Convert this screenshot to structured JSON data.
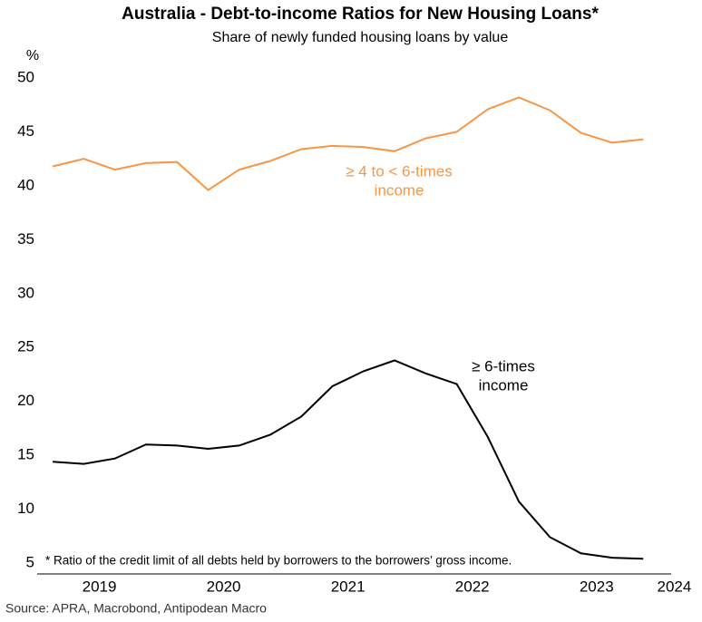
{
  "chart_data": {
    "type": "line",
    "title": "Australia - Debt-to-income Ratios for New Housing Loans*",
    "subtitle": "Share of newly funded housing loans by value",
    "y_unit": "%",
    "footnote": "* Ratio of the credit limit of all debts held by borrowers to the borrowers’ gross income.",
    "source": "Source: APRA, Macrobond, Antipodean Macro",
    "x": [
      2019.125,
      2019.375,
      2019.625,
      2019.875,
      2020.125,
      2020.375,
      2020.625,
      2020.875,
      2021.125,
      2021.375,
      2021.625,
      2021.875,
      2022.125,
      2022.375,
      2022.625,
      2022.875,
      2023.125,
      2023.375,
      2023.625,
      2023.875
    ],
    "xlim": [
      2019,
      2024.1
    ],
    "xticks": [
      {
        "value": 2019.5,
        "label": "2019"
      },
      {
        "value": 2020.5,
        "label": "2020"
      },
      {
        "value": 2021.5,
        "label": "2021"
      },
      {
        "value": 2022.5,
        "label": "2022"
      },
      {
        "value": 2023.5,
        "label": "2023"
      },
      {
        "value": 2024.125,
        "label": "2024"
      }
    ],
    "ylim": [
      5,
      50
    ],
    "yticks": [
      5,
      10,
      15,
      20,
      25,
      30,
      35,
      40,
      45,
      50
    ],
    "series": [
      {
        "name": "≥ 4 to < 6-times income",
        "label_lines": [
          "≥ 4 to < 6-times",
          "income"
        ],
        "color": "#f79646",
        "values": [
          41.8,
          42.5,
          41.5,
          42.1,
          42.2,
          39.6,
          41.5,
          42.3,
          43.4,
          43.7,
          43.6,
          43.2,
          44.4,
          45.0,
          47.1,
          48.2,
          47.0,
          44.9,
          44.0,
          44.3
        ]
      },
      {
        "name": "≥ 6-times income",
        "label_lines": [
          "≥ 6-times",
          "income"
        ],
        "color": "#000000",
        "values": [
          14.4,
          14.2,
          14.7,
          16.0,
          15.9,
          15.6,
          15.9,
          16.9,
          18.6,
          21.4,
          22.8,
          23.8,
          22.6,
          21.6,
          16.7,
          10.7,
          7.4,
          5.9,
          5.5,
          5.4
        ]
      }
    ]
  }
}
